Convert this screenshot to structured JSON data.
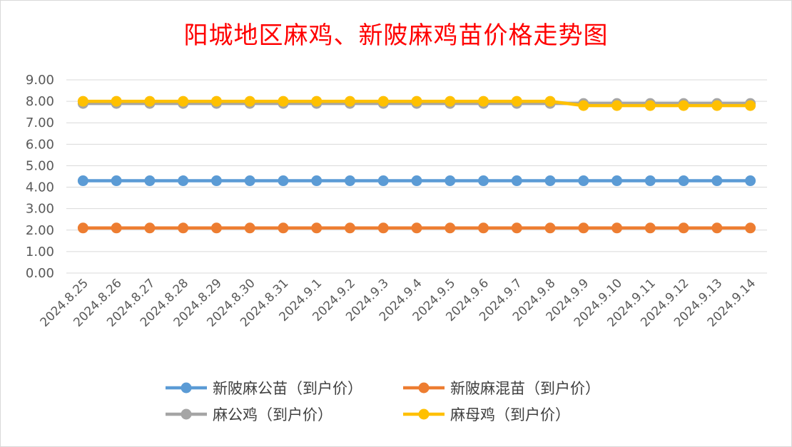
{
  "chart_data": {
    "type": "line",
    "title": "阳城地区麻鸡、新陂麻鸡苗价格走势图",
    "xlabel": "",
    "ylabel": "",
    "ylim": [
      0,
      9
    ],
    "ytick_step": 1,
    "ytick_labels": [
      "0.00",
      "1.00",
      "2.00",
      "3.00",
      "4.00",
      "5.00",
      "6.00",
      "7.00",
      "8.00",
      "9.00"
    ],
    "grid": true,
    "legend_position": "bottom",
    "categories": [
      "2024.8.25",
      "2024.8.26",
      "2024.8.27",
      "2024.8.28",
      "2024.8.29",
      "2024.8.30",
      "2024.8.31",
      "2024.9.1",
      "2024.9.2",
      "2024.9.3",
      "2024.9.4",
      "2024.9.5",
      "2024.9.6",
      "2024.9.7",
      "2024.9.8",
      "2024.9.9",
      "2024.9.10",
      "2024.9.11",
      "2024.9.12",
      "2024.9.13",
      "2024.9.14"
    ],
    "series": [
      {
        "name": "新陂麻公苗（到户价）",
        "color": "#5b9bd5",
        "values": [
          4.3,
          4.3,
          4.3,
          4.3,
          4.3,
          4.3,
          4.3,
          4.3,
          4.3,
          4.3,
          4.3,
          4.3,
          4.3,
          4.3,
          4.3,
          4.3,
          4.3,
          4.3,
          4.3,
          4.3,
          4.3
        ]
      },
      {
        "name": "新陂麻混苗（到户价）",
        "color": "#ed7d31",
        "values": [
          2.1,
          2.1,
          2.1,
          2.1,
          2.1,
          2.1,
          2.1,
          2.1,
          2.1,
          2.1,
          2.1,
          2.1,
          2.1,
          2.1,
          2.1,
          2.1,
          2.1,
          2.1,
          2.1,
          2.1,
          2.1
        ]
      },
      {
        "name": "麻公鸡（到户价）",
        "color": "#a5a5a5",
        "values": [
          7.9,
          7.9,
          7.9,
          7.9,
          7.9,
          7.9,
          7.9,
          7.9,
          7.9,
          7.9,
          7.9,
          7.9,
          7.9,
          7.9,
          7.9,
          7.9,
          7.9,
          7.9,
          7.9,
          7.9,
          7.9
        ]
      },
      {
        "name": "麻母鸡（到户价）",
        "color": "#ffc000",
        "values": [
          8.0,
          8.0,
          8.0,
          8.0,
          8.0,
          8.0,
          8.0,
          8.0,
          8.0,
          8.0,
          8.0,
          8.0,
          8.0,
          8.0,
          8.0,
          7.8,
          7.8,
          7.8,
          7.8,
          7.8,
          7.8
        ]
      }
    ]
  }
}
